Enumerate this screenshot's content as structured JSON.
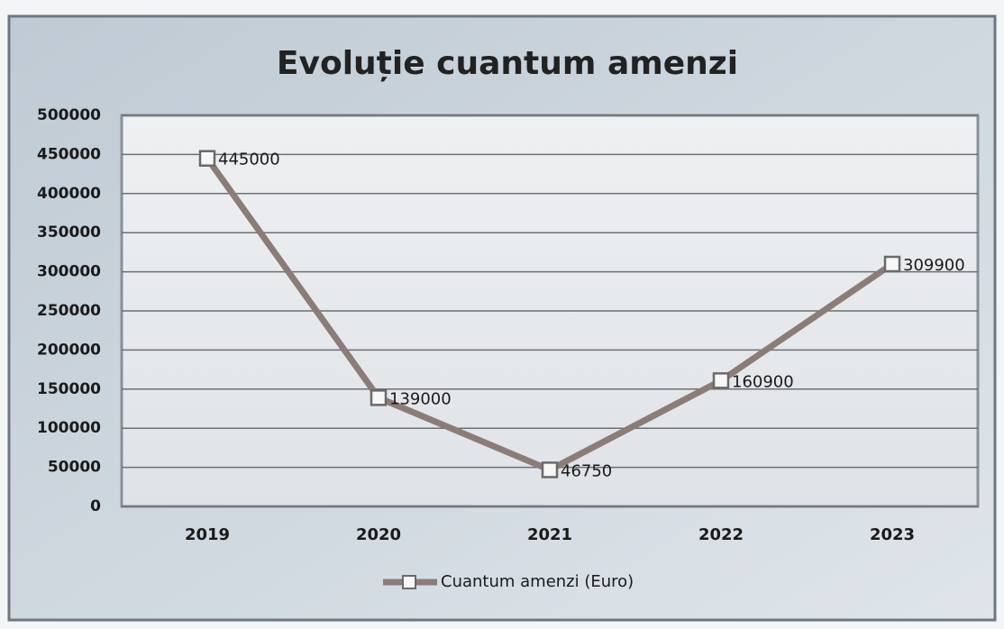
{
  "chart_data": {
    "type": "line",
    "title": "Evoluție cuantum amenzi",
    "categories": [
      "2019",
      "2020",
      "2021",
      "2022",
      "2023"
    ],
    "series": [
      {
        "name": "Cuantum amenzi (Euro)",
        "color": "#8c7c78",
        "values": [
          445000,
          139000,
          46750,
          160900,
          309900
        ]
      }
    ],
    "ylim": [
      0,
      500000
    ],
    "yticks": [
      0,
      50000,
      100000,
      150000,
      200000,
      250000,
      300000,
      350000,
      400000,
      450000,
      500000
    ],
    "grid": true,
    "legend": "bottom"
  }
}
